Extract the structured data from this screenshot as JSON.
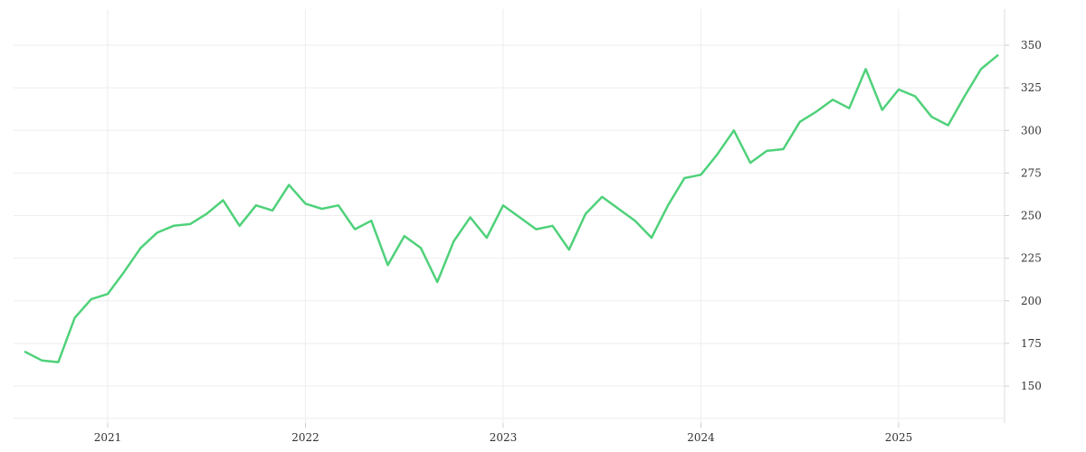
{
  "chart_data": {
    "type": "line",
    "x_axis": {
      "ticks": [
        "2021",
        "2022",
        "2023",
        "2024",
        "2025"
      ]
    },
    "y_axis": {
      "ticks": [
        150,
        175,
        200,
        225,
        250,
        275,
        300,
        325,
        350
      ],
      "position": "right",
      "ylim": [
        130,
        370
      ]
    },
    "grid": true,
    "legend": "none",
    "colors": {
      "line": "#4fd17a",
      "grid": "#eeeeee",
      "text": "#333333"
    },
    "series": [
      {
        "x": [
          "2020-08",
          "2020-09",
          "2020-10",
          "2020-11",
          "2020-12",
          "2021-01",
          "2021-02",
          "2021-03",
          "2021-04",
          "2021-05",
          "2021-06",
          "2021-07",
          "2021-08",
          "2021-09",
          "2021-10",
          "2021-11",
          "2021-12",
          "2022-01",
          "2022-02",
          "2022-03",
          "2022-04",
          "2022-05",
          "2022-06",
          "2022-07",
          "2022-08",
          "2022-09",
          "2022-10",
          "2022-11",
          "2022-12",
          "2023-01",
          "2023-02",
          "2023-03",
          "2023-04",
          "2023-05",
          "2023-06",
          "2023-07",
          "2023-08",
          "2023-09",
          "2023-10",
          "2023-11",
          "2023-12",
          "2024-01",
          "2024-02",
          "2024-03",
          "2024-04",
          "2024-05",
          "2024-06",
          "2024-07",
          "2024-08",
          "2024-09",
          "2024-10",
          "2024-11",
          "2024-12",
          "2025-01",
          "2025-02",
          "2025-03",
          "2025-04",
          "2025-05",
          "2025-06",
          "2025-07"
        ],
        "values": [
          170,
          165,
          164,
          190,
          201,
          204,
          217,
          231,
          240,
          244,
          245,
          251,
          259,
          244,
          256,
          253,
          268,
          257,
          254,
          256,
          242,
          247,
          221,
          238,
          231,
          211,
          235,
          249,
          237,
          256,
          249,
          242,
          244,
          230,
          251,
          261,
          254,
          247,
          237,
          256,
          272,
          274,
          286,
          300,
          281,
          288,
          289,
          305,
          311,
          318,
          313,
          336,
          312,
          324,
          320,
          308,
          303,
          320,
          336,
          344
        ]
      }
    ]
  }
}
